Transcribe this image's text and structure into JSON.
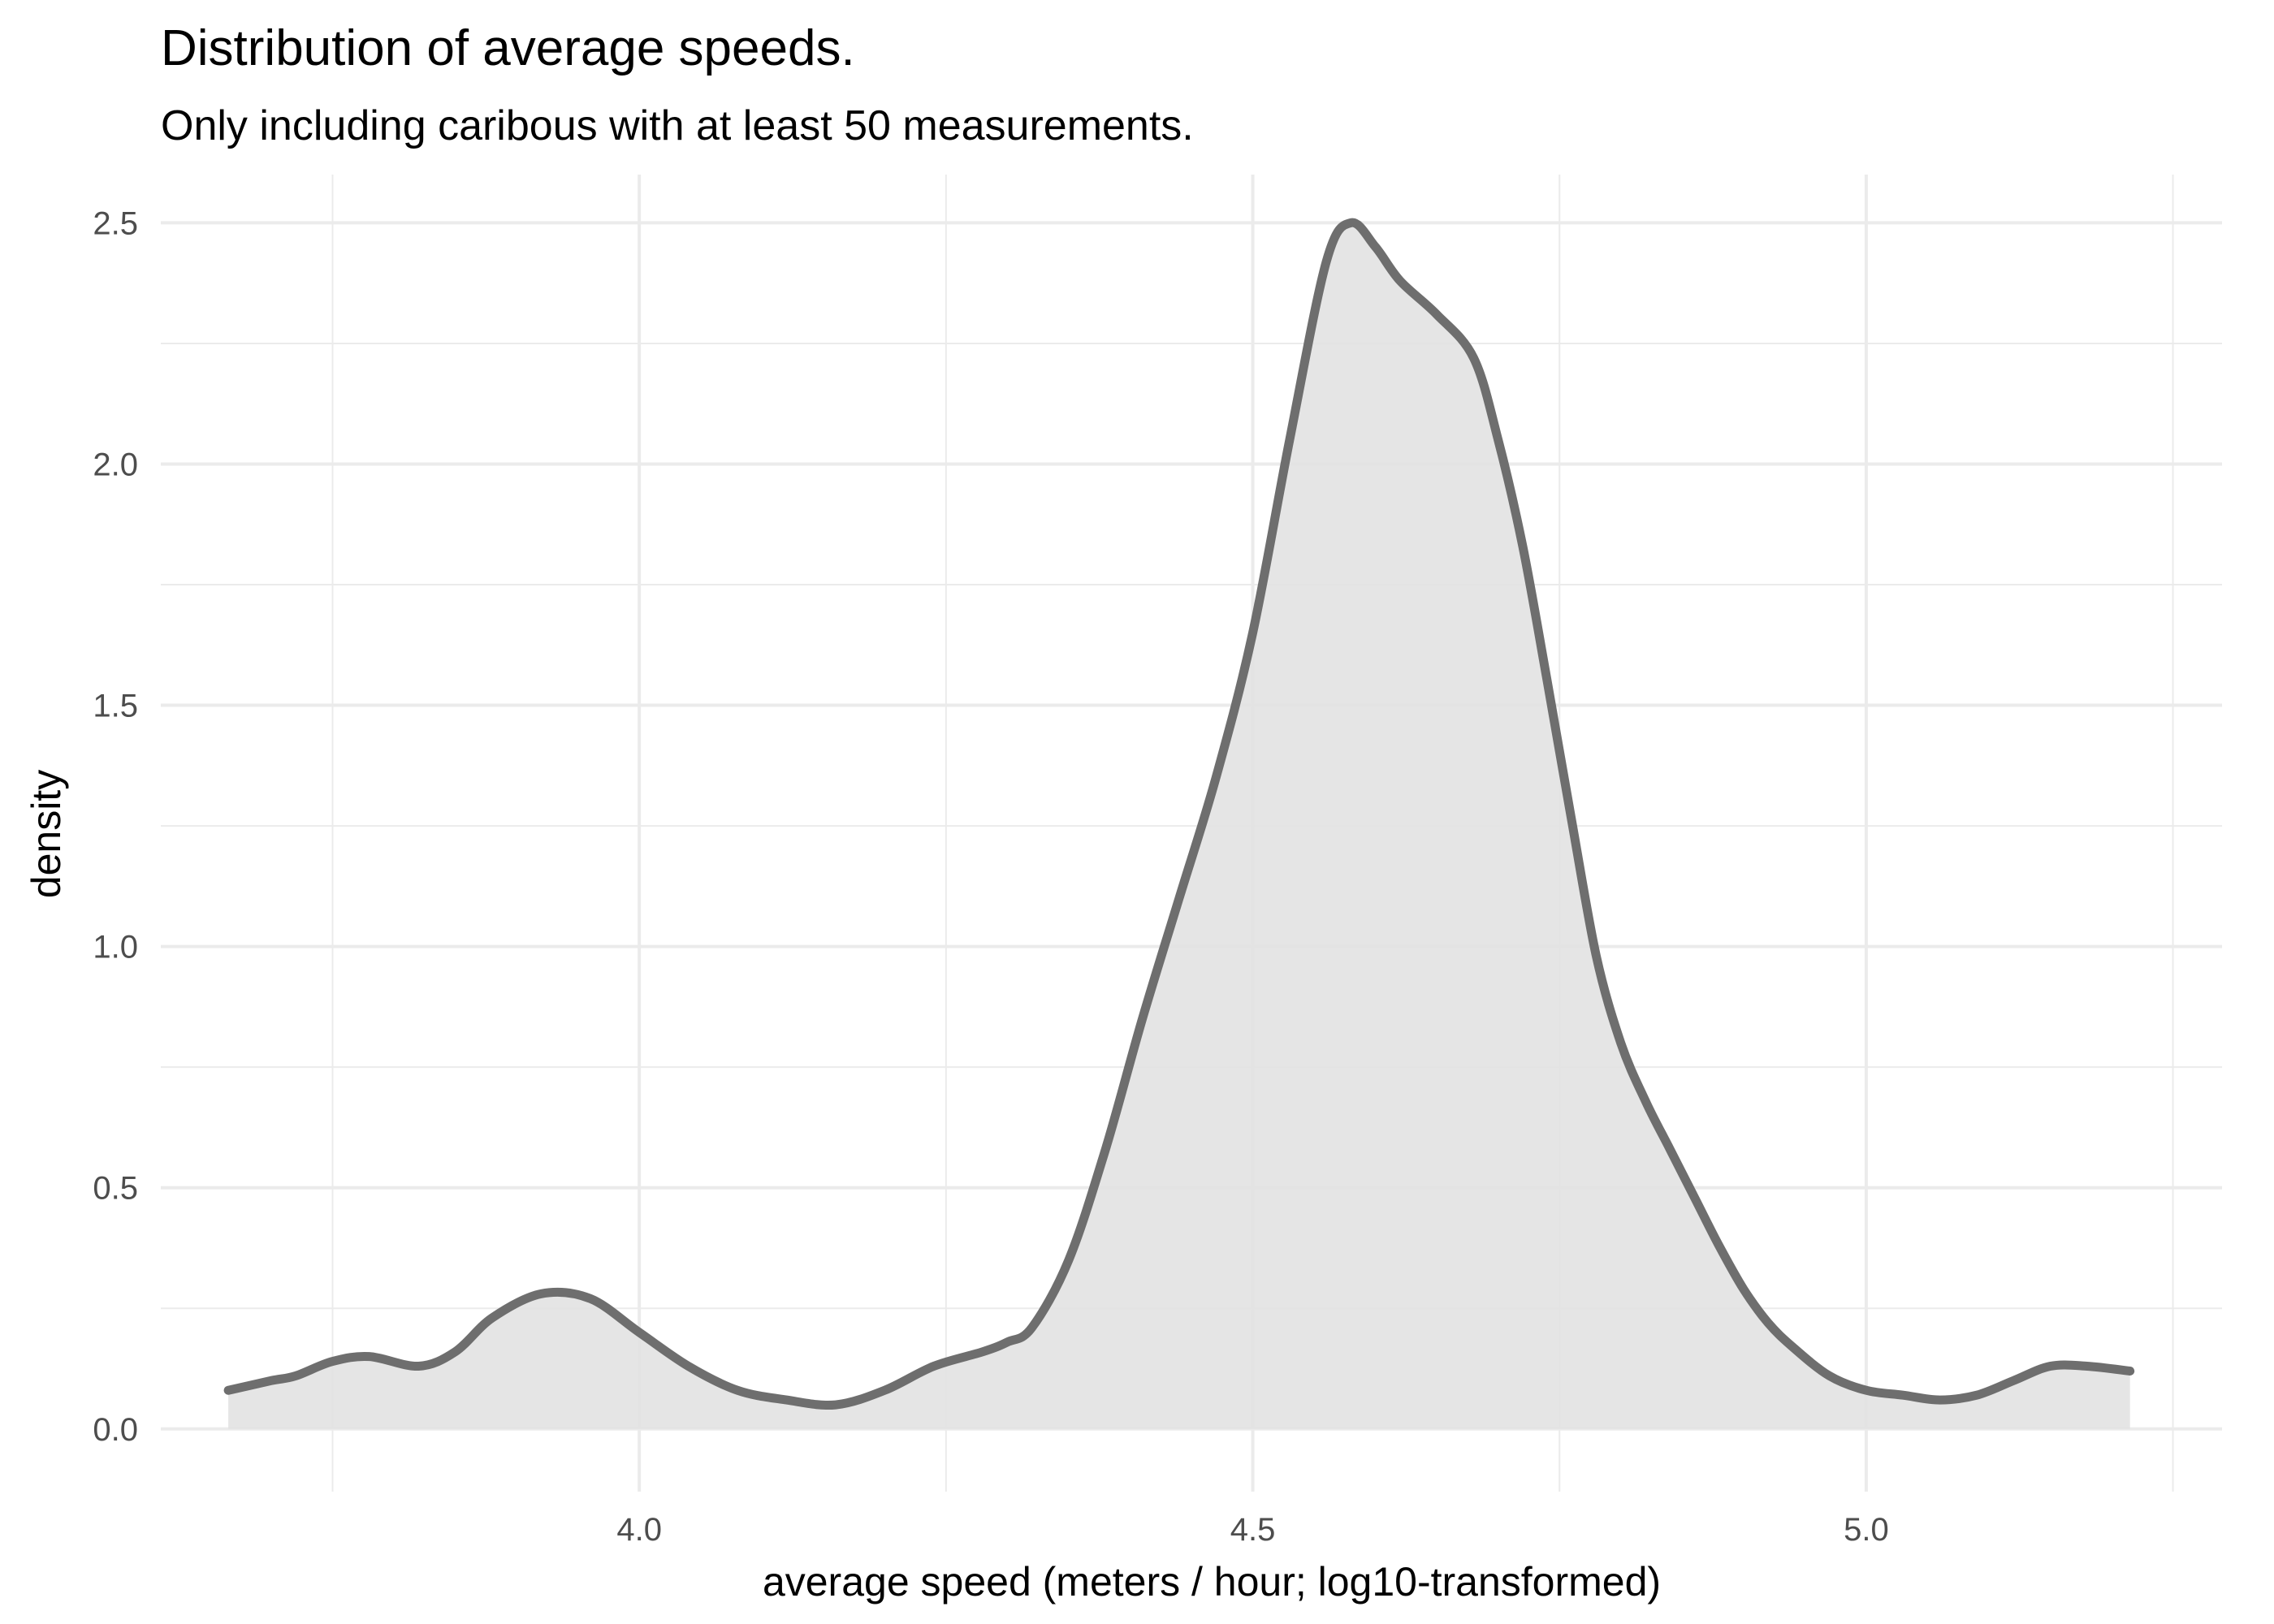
{
  "chart_data": {
    "type": "area",
    "title": "Distribution of average speeds.",
    "subtitle": "Only including caribous with at least 50 measurements.",
    "xlabel": "average speed (meters / hour; log10-transformed)",
    "ylabel": "density",
    "xlim": [
      3.61,
      5.29
    ],
    "ylim": [
      -0.13,
      2.6
    ],
    "x_ticks": [
      4.0,
      4.5,
      5.0
    ],
    "x_tick_labels": [
      "4.0",
      "4.5",
      "5.0"
    ],
    "x_minor_ticks": [
      3.75,
      4.25,
      4.75,
      5.25
    ],
    "y_ticks": [
      0.0,
      0.5,
      1.0,
      1.5,
      2.0,
      2.5
    ],
    "y_tick_labels": [
      "0.0",
      "0.5",
      "1.0",
      "1.5",
      "2.0",
      "2.5"
    ],
    "y_minor_ticks": [
      0.25,
      0.75,
      1.25,
      1.75,
      2.25
    ],
    "grid": true,
    "line_color": "#6e6e6e",
    "fill_color": "#e2e2e2",
    "series": [
      {
        "x": [
          3.665,
          3.7,
          3.72,
          3.75,
          3.78,
          3.82,
          3.85,
          3.88,
          3.92,
          3.96,
          4.0,
          4.04,
          4.08,
          4.12,
          4.16,
          4.2,
          4.24,
          4.28,
          4.3,
          4.32,
          4.35,
          4.38,
          4.41,
          4.44,
          4.47,
          4.5,
          4.53,
          4.56,
          4.58,
          4.6,
          4.62,
          4.65,
          4.68,
          4.7,
          4.72,
          4.74,
          4.76,
          4.78,
          4.8,
          4.82,
          4.84,
          4.86,
          4.88,
          4.9,
          4.92,
          4.94,
          4.97,
          5.0,
          5.03,
          5.06,
          5.09,
          5.12,
          5.15,
          5.18,
          5.215
        ],
        "y": [
          0.08,
          0.1,
          0.11,
          0.14,
          0.15,
          0.13,
          0.16,
          0.23,
          0.28,
          0.27,
          0.2,
          0.13,
          0.08,
          0.06,
          0.05,
          0.08,
          0.13,
          0.16,
          0.18,
          0.21,
          0.35,
          0.58,
          0.85,
          1.1,
          1.35,
          1.65,
          2.05,
          2.42,
          2.5,
          2.45,
          2.38,
          2.31,
          2.22,
          2.05,
          1.83,
          1.55,
          1.26,
          0.98,
          0.8,
          0.68,
          0.58,
          0.48,
          0.38,
          0.29,
          0.22,
          0.17,
          0.11,
          0.08,
          0.07,
          0.06,
          0.07,
          0.1,
          0.13,
          0.13,
          0.12
        ]
      }
    ]
  }
}
